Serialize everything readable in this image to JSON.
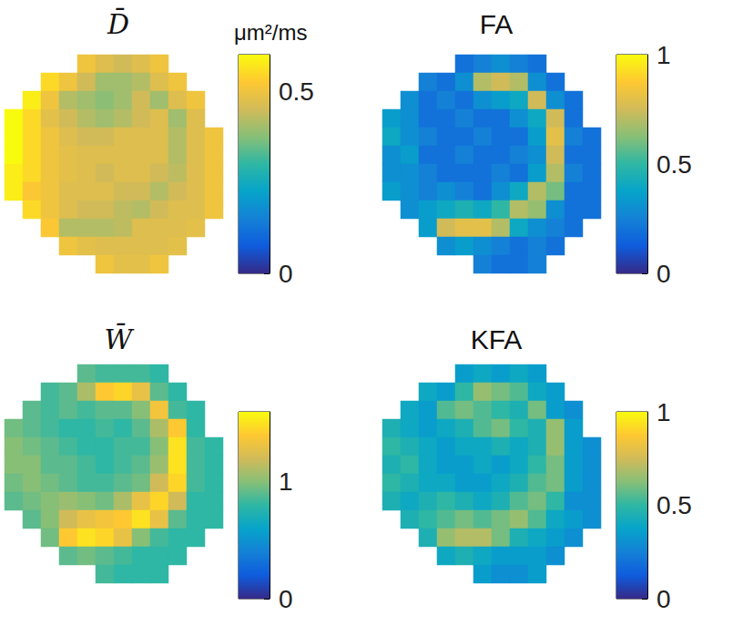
{
  "chart_data": [
    {
      "type": "heatmap",
      "title": "D̄",
      "colorbar_label": "μm²/ms",
      "tick_labels": false,
      "colorbar_lim": [
        0,
        0.6
      ],
      "colorbar_ticks": [
        0,
        0.5
      ],
      "cells": [
        [
          null,
          null,
          null,
          null,
          0.5,
          0.47,
          0.45,
          0.47,
          0.5,
          null,
          null,
          null
        ],
        [
          null,
          null,
          0.55,
          0.5,
          0.45,
          0.4,
          0.4,
          0.42,
          0.47,
          0.5,
          null,
          null
        ],
        [
          null,
          0.58,
          0.5,
          0.42,
          0.4,
          0.38,
          0.4,
          0.45,
          0.4,
          0.47,
          0.5,
          null
        ],
        [
          0.6,
          0.55,
          0.48,
          0.45,
          0.42,
          0.4,
          0.42,
          0.45,
          0.47,
          0.4,
          0.47,
          null
        ],
        [
          0.6,
          0.55,
          0.5,
          0.47,
          0.45,
          0.45,
          0.47,
          0.47,
          0.47,
          0.42,
          0.47,
          0.5
        ],
        [
          0.6,
          0.55,
          0.5,
          0.48,
          0.47,
          0.47,
          0.47,
          0.47,
          0.47,
          0.42,
          0.47,
          0.5
        ],
        [
          0.58,
          0.55,
          0.5,
          0.48,
          0.47,
          0.45,
          0.47,
          0.47,
          0.45,
          0.43,
          0.47,
          0.5
        ],
        [
          0.58,
          0.52,
          0.5,
          0.47,
          0.47,
          0.47,
          0.45,
          0.45,
          0.42,
          0.45,
          0.47,
          0.5
        ],
        [
          null,
          0.55,
          0.5,
          0.47,
          0.45,
          0.45,
          0.43,
          0.42,
          0.45,
          0.47,
          0.47,
          0.5
        ],
        [
          null,
          null,
          0.52,
          0.42,
          0.42,
          0.42,
          0.43,
          0.47,
          0.47,
          0.47,
          0.48,
          null
        ],
        [
          null,
          null,
          null,
          0.5,
          0.48,
          0.47,
          0.47,
          0.47,
          0.47,
          0.48,
          null,
          null
        ],
        [
          null,
          null,
          null,
          null,
          null,
          0.5,
          0.48,
          0.48,
          0.5,
          null,
          null,
          null
        ]
      ]
    },
    {
      "type": "heatmap",
      "title": "FA",
      "tick_labels": false,
      "colorbar_lim": [
        0,
        1
      ],
      "colorbar_ticks": [
        0,
        0.5,
        1
      ],
      "cells": [
        [
          null,
          null,
          null,
          null,
          0.2,
          0.25,
          0.3,
          0.25,
          0.2,
          null,
          null,
          null
        ],
        [
          null,
          null,
          0.25,
          0.2,
          0.3,
          0.7,
          0.75,
          0.7,
          0.3,
          0.2,
          null,
          null
        ],
        [
          null,
          0.3,
          0.2,
          0.25,
          0.2,
          0.3,
          0.35,
          0.4,
          0.75,
          0.3,
          0.2,
          null
        ],
        [
          0.35,
          0.3,
          0.2,
          0.2,
          0.25,
          0.2,
          0.2,
          0.3,
          0.4,
          0.75,
          0.2,
          null
        ],
        [
          0.4,
          0.3,
          0.25,
          0.2,
          0.2,
          0.25,
          0.2,
          0.2,
          0.35,
          0.8,
          0.25,
          0.2
        ],
        [
          0.3,
          0.35,
          0.2,
          0.2,
          0.25,
          0.2,
          0.2,
          0.25,
          0.3,
          0.75,
          0.2,
          0.2
        ],
        [
          0.3,
          0.3,
          0.25,
          0.2,
          0.2,
          0.2,
          0.25,
          0.2,
          0.35,
          0.7,
          0.25,
          0.2
        ],
        [
          0.35,
          0.3,
          0.25,
          0.3,
          0.25,
          0.2,
          0.3,
          0.4,
          0.7,
          0.6,
          0.2,
          0.2
        ],
        [
          null,
          0.3,
          0.35,
          0.4,
          0.45,
          0.4,
          0.5,
          0.7,
          0.65,
          0.3,
          0.2,
          0.2
        ],
        [
          null,
          null,
          0.35,
          0.75,
          0.8,
          0.8,
          0.7,
          0.4,
          0.3,
          0.25,
          0.2,
          null
        ],
        [
          null,
          null,
          null,
          0.3,
          0.35,
          0.3,
          0.25,
          0.2,
          0.25,
          0.2,
          null,
          null
        ],
        [
          null,
          null,
          null,
          null,
          null,
          0.25,
          0.2,
          0.2,
          0.25,
          null,
          null,
          null
        ]
      ]
    },
    {
      "type": "heatmap",
      "title": "W̄",
      "tick_labels": false,
      "colorbar_lim": [
        0,
        1.6
      ],
      "colorbar_ticks": [
        0,
        1
      ],
      "cells": [
        [
          null,
          null,
          null,
          null,
          0.9,
          0.85,
          0.85,
          0.85,
          0.8,
          null,
          null,
          null
        ],
        [
          null,
          null,
          0.85,
          0.9,
          1.1,
          1.4,
          1.45,
          1.3,
          0.9,
          0.8,
          null,
          null
        ],
        [
          null,
          0.9,
          0.85,
          0.9,
          0.85,
          0.9,
          0.9,
          1.0,
          1.35,
          0.85,
          0.8,
          null
        ],
        [
          0.95,
          0.9,
          0.85,
          0.8,
          0.8,
          0.85,
          0.8,
          0.9,
          1.1,
          1.4,
          0.8,
          null
        ],
        [
          1.0,
          0.95,
          0.9,
          0.85,
          0.8,
          0.8,
          0.85,
          0.85,
          1.0,
          1.5,
          0.85,
          0.8
        ],
        [
          1.0,
          1.0,
          0.9,
          0.9,
          0.85,
          0.8,
          0.85,
          0.9,
          1.05,
          1.5,
          0.85,
          0.8
        ],
        [
          0.95,
          1.0,
          0.95,
          0.9,
          0.85,
          0.85,
          0.9,
          0.95,
          1.2,
          1.45,
          0.85,
          0.8
        ],
        [
          0.9,
          0.95,
          1.0,
          1.05,
          1.0,
          0.95,
          1.1,
          1.3,
          1.45,
          1.2,
          0.8,
          0.8
        ],
        [
          null,
          0.9,
          1.0,
          1.2,
          1.3,
          1.35,
          1.4,
          1.5,
          1.3,
          0.9,
          0.8,
          0.8
        ],
        [
          null,
          null,
          0.95,
          1.4,
          1.5,
          1.45,
          1.3,
          1.0,
          0.85,
          0.8,
          0.8,
          null
        ],
        [
          null,
          null,
          null,
          0.9,
          0.95,
          0.9,
          0.85,
          0.8,
          0.8,
          0.8,
          null,
          null
        ],
        [
          null,
          null,
          null,
          null,
          null,
          0.85,
          0.8,
          0.8,
          0.8,
          null,
          null,
          null
        ]
      ]
    },
    {
      "type": "heatmap",
      "title": "KFA",
      "tick_labels": false,
      "colorbar_lim": [
        0,
        1
      ],
      "colorbar_ticks": [
        0,
        0.5,
        1
      ],
      "cells": [
        [
          null,
          null,
          null,
          null,
          0.35,
          0.4,
          0.35,
          0.4,
          0.35,
          null,
          null,
          null
        ],
        [
          null,
          null,
          0.4,
          0.35,
          0.5,
          0.65,
          0.6,
          0.55,
          0.4,
          0.35,
          null,
          null
        ],
        [
          null,
          0.4,
          0.35,
          0.55,
          0.6,
          0.55,
          0.5,
          0.45,
          0.6,
          0.35,
          0.3,
          null
        ],
        [
          0.45,
          0.4,
          0.35,
          0.4,
          0.45,
          0.55,
          0.6,
          0.5,
          0.45,
          0.65,
          0.35,
          null
        ],
        [
          0.5,
          0.45,
          0.4,
          0.35,
          0.4,
          0.4,
          0.45,
          0.4,
          0.45,
          0.65,
          0.35,
          0.3
        ],
        [
          0.45,
          0.5,
          0.4,
          0.35,
          0.35,
          0.4,
          0.35,
          0.4,
          0.5,
          0.6,
          0.35,
          0.3
        ],
        [
          0.5,
          0.45,
          0.4,
          0.4,
          0.35,
          0.35,
          0.4,
          0.45,
          0.55,
          0.6,
          0.35,
          0.3
        ],
        [
          0.45,
          0.4,
          0.45,
          0.5,
          0.45,
          0.4,
          0.45,
          0.55,
          0.6,
          0.5,
          0.3,
          0.3
        ],
        [
          null,
          0.45,
          0.5,
          0.55,
          0.6,
          0.55,
          0.6,
          0.65,
          0.55,
          0.4,
          0.35,
          0.3
        ],
        [
          null,
          null,
          0.45,
          0.65,
          0.7,
          0.7,
          0.6,
          0.45,
          0.4,
          0.35,
          0.3,
          null
        ],
        [
          null,
          null,
          null,
          0.4,
          0.45,
          0.4,
          0.35,
          0.35,
          0.35,
          0.3,
          null,
          null
        ],
        [
          null,
          null,
          null,
          null,
          null,
          0.35,
          0.3,
          0.3,
          0.35,
          null,
          null,
          null
        ]
      ]
    }
  ]
}
